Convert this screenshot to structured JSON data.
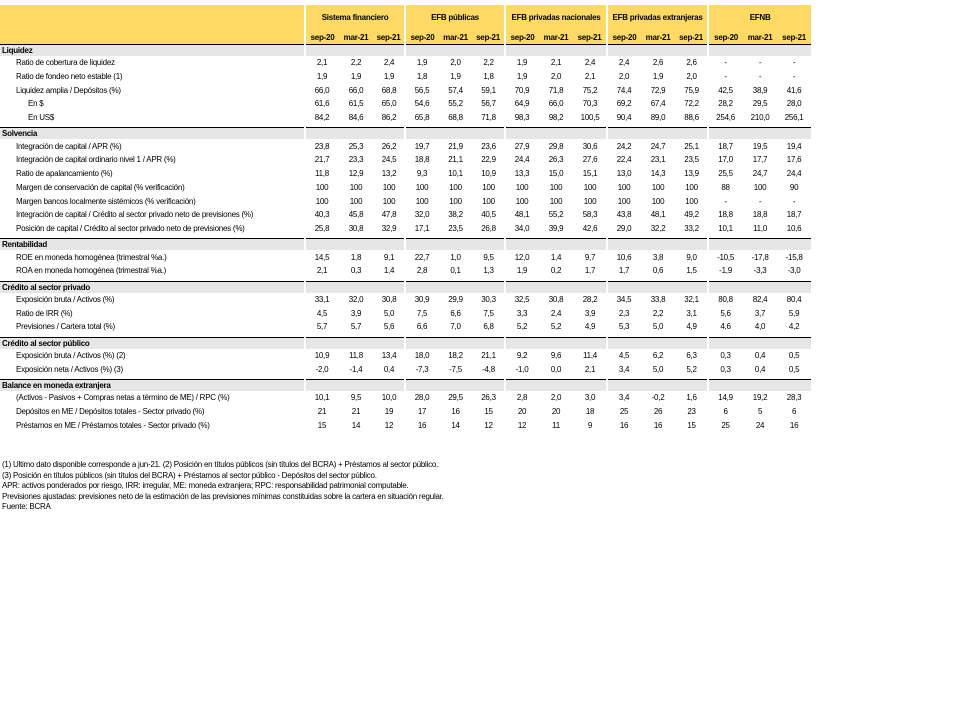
{
  "groups": [
    "Sistema financiero",
    "EFB públicas",
    "EFB privadas nacionales",
    "EFB privadas extranjeras",
    "EFNB"
  ],
  "periods": [
    "sep-20",
    "mar-21",
    "sep-21"
  ],
  "colors": {
    "header": "#FFD966",
    "section_band": "#E6E6E6"
  },
  "sections": [
    {
      "title": "Liquidez",
      "rows": [
        {
          "label": "Ratio de cobertura de liquidez",
          "values": [
            "2,1",
            "2,2",
            "2,4",
            "1,9",
            "2,0",
            "2,2",
            "1,9",
            "2,1",
            "2,4",
            "2,4",
            "2,6",
            "2,6",
            "-",
            "-",
            "-"
          ]
        },
        {
          "label": "Ratio de fondeo neto estable (1)",
          "values": [
            "1,9",
            "1,9",
            "1,9",
            "1,8",
            "1,9",
            "1,8",
            "1,9",
            "2,0",
            "2,1",
            "2,0",
            "1,9",
            "2,0",
            "-",
            "-",
            "-"
          ]
        },
        {
          "label": "Liquidez amplia / Depósitos (%)",
          "values": [
            "66,0",
            "66,0",
            "68,8",
            "56,5",
            "57,4",
            "59,1",
            "70,9",
            "71,8",
            "75,2",
            "74,4",
            "72,9",
            "75,9",
            "42,5",
            "38,9",
            "41,6"
          ]
        },
        {
          "label": "En $",
          "indent": true,
          "values": [
            "61,6",
            "61,5",
            "65,0",
            "54,6",
            "55,2",
            "56,7",
            "64,9",
            "66,0",
            "70,3",
            "69,2",
            "67,4",
            "72,2",
            "28,2",
            "29,5",
            "28,0"
          ]
        },
        {
          "label": "En US$",
          "indent": true,
          "values": [
            "84,2",
            "84,6",
            "86,2",
            "65,8",
            "68,8",
            "71,8",
            "98,3",
            "98,2",
            "100,5",
            "90,4",
            "89,0",
            "88,6",
            "254,6",
            "210,0",
            "256,1"
          ]
        }
      ]
    },
    {
      "title": "Solvencia",
      "rows": [
        {
          "label": "Integración de capital / APR (%)",
          "values": [
            "23,8",
            "25,3",
            "26,2",
            "19,7",
            "21,9",
            "23,6",
            "27,9",
            "29,8",
            "30,6",
            "24,2",
            "24,7",
            "25,1",
            "18,7",
            "19,5",
            "19,4"
          ]
        },
        {
          "label": "Integración de capital ordinario nivel 1 / APR (%)",
          "values": [
            "21,7",
            "23,3",
            "24,5",
            "18,8",
            "21,1",
            "22,9",
            "24,4",
            "26,3",
            "27,6",
            "22,4",
            "23,1",
            "23,5",
            "17,0",
            "17,7",
            "17,6"
          ]
        },
        {
          "label": "Ratio de apalancamiento (%)",
          "values": [
            "11,8",
            "12,9",
            "13,2",
            "9,3",
            "10,1",
            "10,9",
            "13,3",
            "15,0",
            "15,1",
            "13,0",
            "14,3",
            "13,9",
            "25,5",
            "24,7",
            "24,4"
          ]
        },
        {
          "label": "Margen de conservación de capital (% verificación)",
          "values": [
            "100",
            "100",
            "100",
            "100",
            "100",
            "100",
            "100",
            "100",
            "100",
            "100",
            "100",
            "100",
            "88",
            "100",
            "90"
          ]
        },
        {
          "label": "Margen bancos localmente sistémicos (% verificación)",
          "values": [
            "100",
            "100",
            "100",
            "100",
            "100",
            "100",
            "100",
            "100",
            "100",
            "100",
            "100",
            "100",
            "-",
            "-",
            "-"
          ]
        },
        {
          "label": "Integración de capital / Crédito al sector privado neto de previsiones (%)",
          "values": [
            "40,3",
            "45,8",
            "47,8",
            "32,0",
            "38,2",
            "40,5",
            "48,1",
            "55,2",
            "58,3",
            "43,8",
            "48,1",
            "49,2",
            "18,8",
            "18,8",
            "18,7"
          ]
        },
        {
          "label": "Posición de capital / Crédito al sector privado neto de previsiones (%)",
          "values": [
            "25,8",
            "30,8",
            "32,9",
            "17,1",
            "23,5",
            "26,8",
            "34,0",
            "39,9",
            "42,6",
            "29,0",
            "32,2",
            "33,2",
            "10,1",
            "11,0",
            "10,6"
          ]
        }
      ]
    },
    {
      "title": "Rentabilidad",
      "rows": [
        {
          "label": "ROE en moneda homogénea (trimestral %a.)",
          "values": [
            "14,5",
            "1,8",
            "9,1",
            "22,7",
            "1,0",
            "9,5",
            "12,0",
            "1,4",
            "9,7",
            "10,6",
            "3,8",
            "9,0",
            "-10,5",
            "-17,8",
            "-15,8"
          ]
        },
        {
          "label": "ROA en moneda homogénea (trimestral %a.)",
          "values": [
            "2,1",
            "0,3",
            "1,4",
            "2,8",
            "0,1",
            "1,3",
            "1,9",
            "0,2",
            "1,7",
            "1,7",
            "0,6",
            "1,5",
            "-1,9",
            "-3,3",
            "-3,0"
          ]
        }
      ]
    },
    {
      "title": "Crédito al sector privado",
      "rows": [
        {
          "label": "Exposición bruta / Activos (%)",
          "values": [
            "33,1",
            "32,0",
            "30,8",
            "30,9",
            "29,9",
            "30,3",
            "32,5",
            "30,8",
            "28,2",
            "34,5",
            "33,8",
            "32,1",
            "80,8",
            "82,4",
            "80,4"
          ]
        },
        {
          "label": "Ratio de IRR (%)",
          "values": [
            "4,5",
            "3,9",
            "5,0",
            "7,5",
            "6,6",
            "7,5",
            "3,3",
            "2,4",
            "3,9",
            "2,3",
            "2,2",
            "3,1",
            "5,6",
            "3,7",
            "5,9"
          ]
        },
        {
          "label": "Previsiones / Cartera total (%)",
          "values": [
            "5,7",
            "5,7",
            "5,6",
            "6,6",
            "7,0",
            "6,8",
            "5,2",
            "5,2",
            "4,9",
            "5,3",
            "5,0",
            "4,9",
            "4,6",
            "4,0",
            "4,2"
          ]
        }
      ]
    },
    {
      "title": "Crédito al sector público",
      "rows": [
        {
          "label": "Exposición bruta / Activos (%) (2)",
          "values": [
            "10,9",
            "11,8",
            "13,4",
            "18,0",
            "18,2",
            "21,1",
            "9,2",
            "9,6",
            "11,4",
            "4,5",
            "6,2",
            "6,3",
            "0,3",
            "0,4",
            "0,5"
          ]
        },
        {
          "label": "Exposición neta / Activos (%) (3)",
          "values": [
            "-2,0",
            "-1,4",
            "0,4",
            "-7,3",
            "-7,5",
            "-4,8",
            "-1,0",
            "0,0",
            "2,1",
            "3,4",
            "5,0",
            "5,2",
            "0,3",
            "0,4",
            "0,5"
          ]
        }
      ]
    },
    {
      "title": "Balance en moneda extranjera",
      "rows": [
        {
          "label": "(Activos - Pasivos + Compras netas a término de ME) / RPC (%)",
          "values": [
            "10,1",
            "9,5",
            "10,0",
            "28,0",
            "29,5",
            "26,3",
            "2,8",
            "2,0",
            "3,0",
            "3,4",
            "-0,2",
            "1,6",
            "14,9",
            "19,2",
            "28,3"
          ]
        },
        {
          "label": "Depósitos en ME / Depósitos totales - Sector privado (%)",
          "values": [
            "21",
            "21",
            "19",
            "17",
            "16",
            "15",
            "20",
            "20",
            "18",
            "25",
            "26",
            "23",
            "6",
            "5",
            "6"
          ]
        },
        {
          "label": "Préstamos en ME / Préstamos totales - Sector privado (%)",
          "values": [
            "15",
            "14",
            "12",
            "16",
            "14",
            "12",
            "12",
            "11",
            "9",
            "16",
            "16",
            "15",
            "25",
            "24",
            "16"
          ]
        }
      ]
    }
  ],
  "footnotes": [
    "(1) Ultimo dato disponible corresponde a jun-21. (2) Posición en títulos públicos (sin títulos del BCRA) + Préstamos al sector público.",
    "(3) Posición en títulos públicos (sin títulos del BCRA) + Préstamos al sector público - Depósitos del sector público.",
    "APR: activos ponderados por riesgo, IRR: irregular, ME: moneda extranjera; RPC: responsabilidad patrimonial computable.",
    "Previsiones ajustadas: previsiones neto de la estimación de las previsiones mínimas constituidas sobre la cartera en situación regular.",
    "Fuente: BCRA"
  ]
}
